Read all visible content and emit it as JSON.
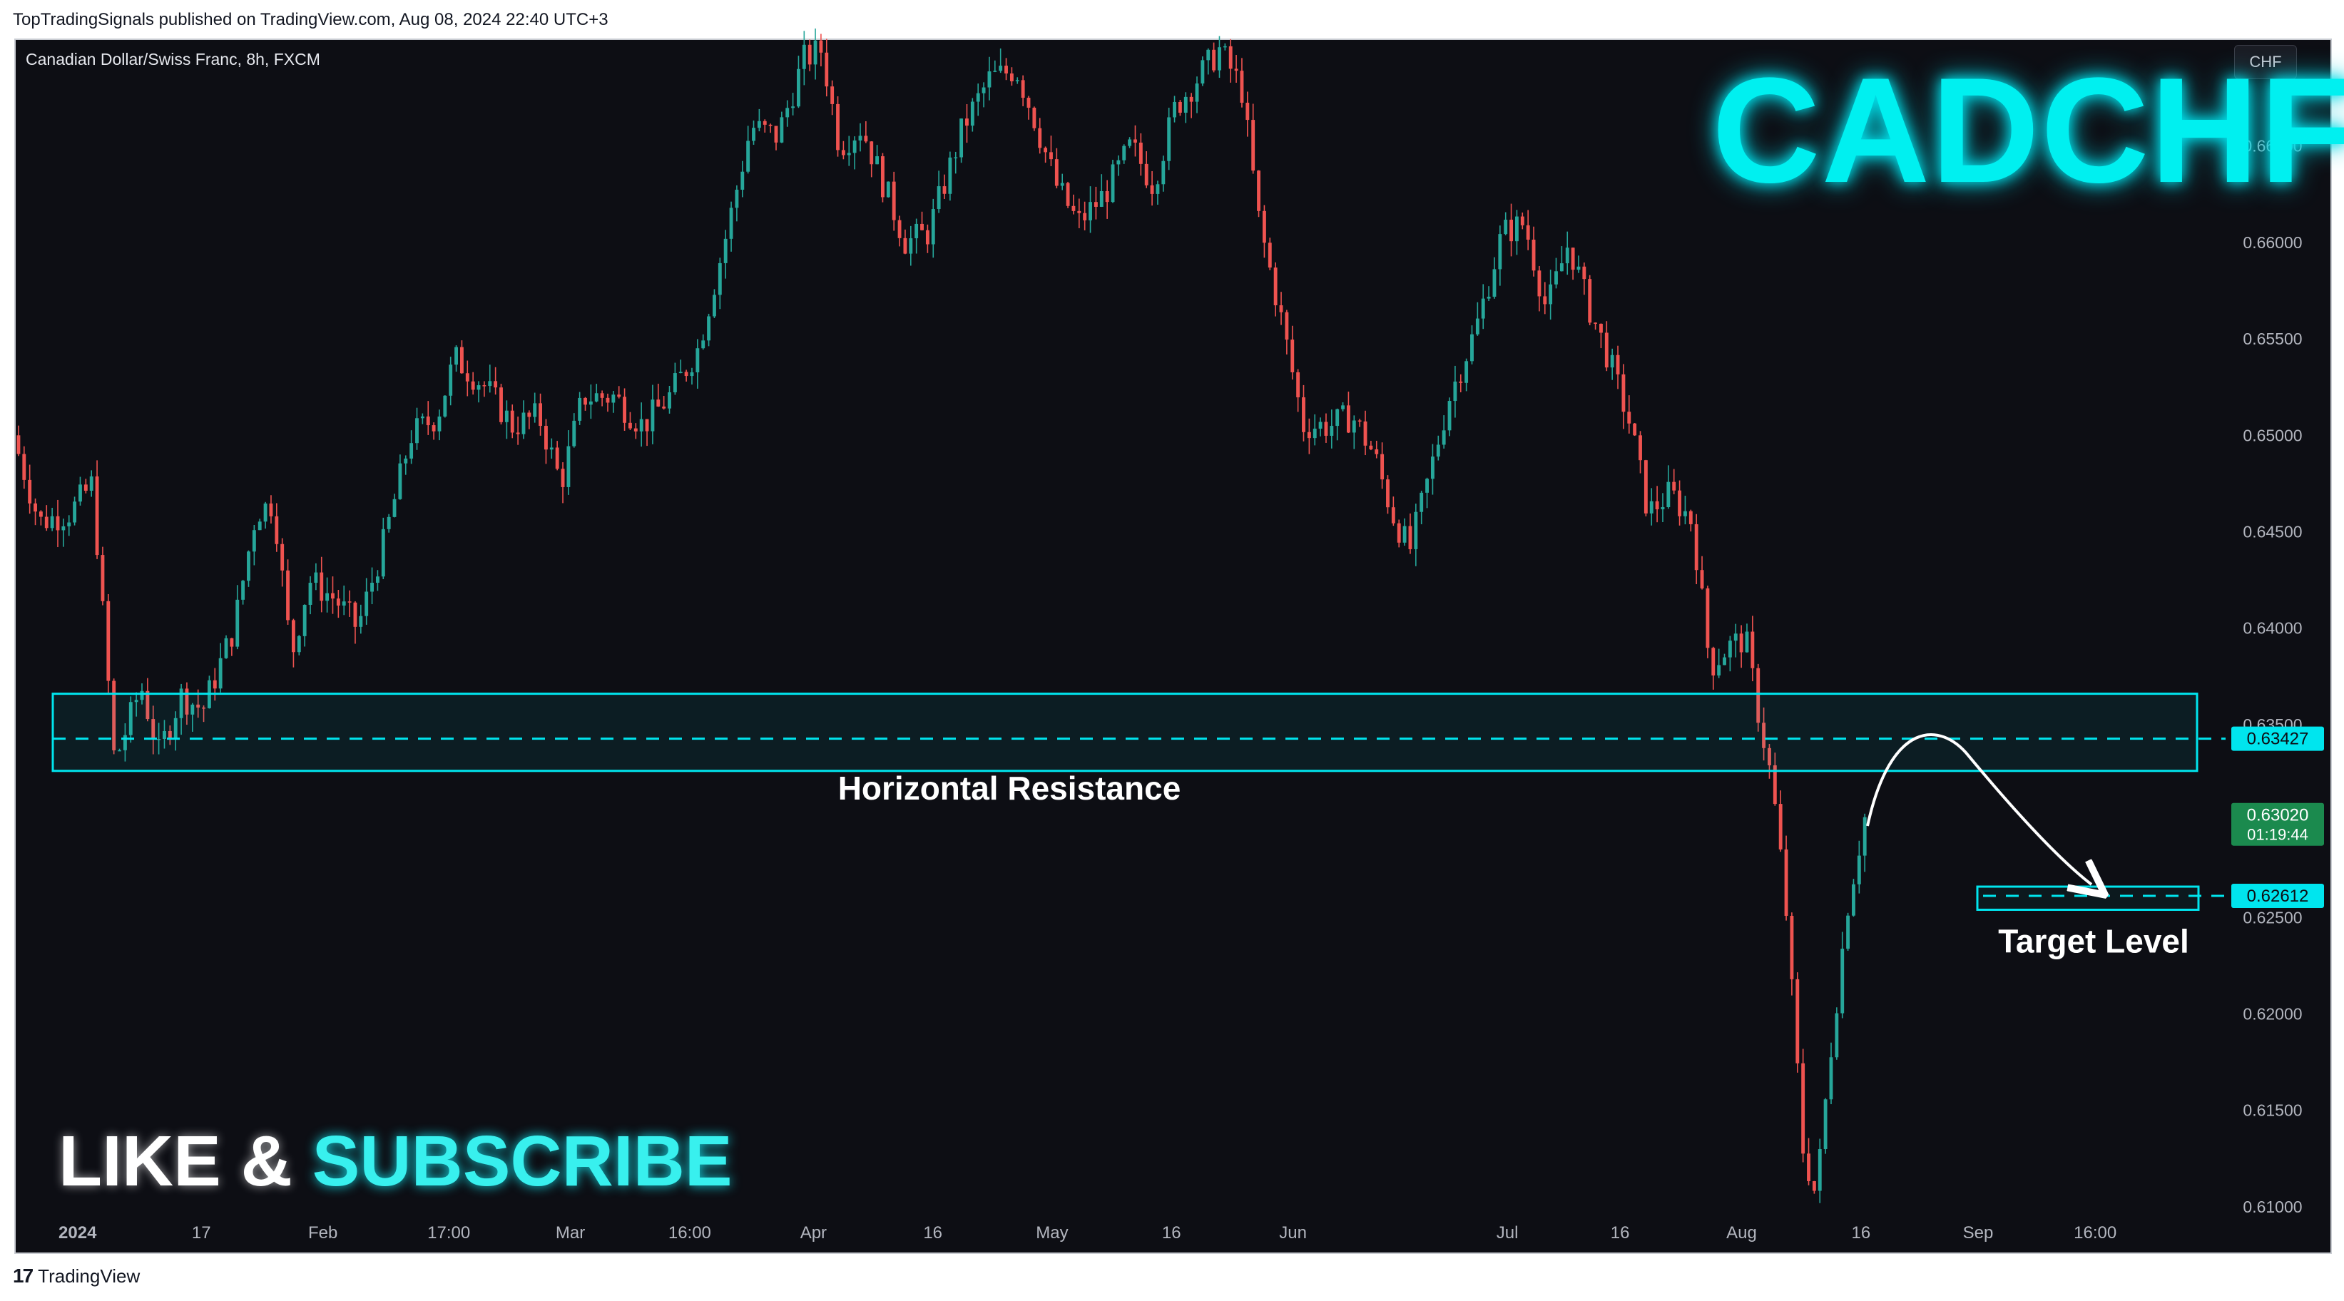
{
  "header": {
    "published_line": "TopTradingSignals published on TradingView.com, Aug 08, 2024 22:40 UTC+3",
    "symbol_title": "Canadian Dollar/Swiss Franc, 8h, FXCM",
    "currency_badge": "CHF",
    "big_ticker": "CADCHF"
  },
  "footer": {
    "like_text": "LIKE &",
    "subscribe_text": "SUBSCRIBE",
    "tv_logo_text": "TradingView"
  },
  "colors": {
    "background": "#0d0e14",
    "up_candle": "#26a69a",
    "down_candle": "#ef5350",
    "accent_cyan": "#00e5ee",
    "price_badge_green": "#1b8a4e"
  },
  "chart_data": {
    "type": "candlestick",
    "symbol": "CADCHF",
    "timeframe": "8h",
    "y_ticks": [
      "0.66500",
      "0.66000",
      "0.65500",
      "0.65000",
      "0.64500",
      "0.64000",
      "0.63500",
      "0.63000",
      "0.62500",
      "0.62000",
      "0.61500",
      "0.61000"
    ],
    "y_tick_values": [
      0.665,
      0.66,
      0.655,
      0.65,
      0.645,
      0.64,
      0.635,
      0.63,
      0.625,
      0.62,
      0.615,
      0.61
    ],
    "ylim": [
      0.6097,
      0.6705
    ],
    "x_ticks": [
      "2024",
      "17",
      "Feb",
      "17:00",
      "Mar",
      "16:00",
      "Apr",
      "16",
      "May",
      "16",
      "Jun",
      "Jul",
      "16",
      "Aug",
      "16",
      "Sep",
      "16:00"
    ],
    "x_tick_positions": [
      0.028,
      0.084,
      0.139,
      0.196,
      0.251,
      0.305,
      0.361,
      0.415,
      0.469,
      0.523,
      0.578,
      0.675,
      0.726,
      0.781,
      0.835,
      0.888,
      0.941
    ],
    "price_path": [
      [
        0.0,
        0.65
      ],
      [
        0.012,
        0.6455
      ],
      [
        0.026,
        0.646
      ],
      [
        0.036,
        0.6475
      ],
      [
        0.046,
        0.633
      ],
      [
        0.058,
        0.637
      ],
      [
        0.066,
        0.6335
      ],
      [
        0.076,
        0.6365
      ],
      [
        0.086,
        0.6358
      ],
      [
        0.1,
        0.64
      ],
      [
        0.11,
        0.646
      ],
      [
        0.118,
        0.6465
      ],
      [
        0.126,
        0.6385
      ],
      [
        0.134,
        0.6425
      ],
      [
        0.146,
        0.6415
      ],
      [
        0.156,
        0.64
      ],
      [
        0.168,
        0.6445
      ],
      [
        0.18,
        0.65
      ],
      [
        0.192,
        0.651
      ],
      [
        0.2,
        0.654
      ],
      [
        0.214,
        0.6525
      ],
      [
        0.226,
        0.6505
      ],
      [
        0.238,
        0.651
      ],
      [
        0.248,
        0.6475
      ],
      [
        0.258,
        0.652
      ],
      [
        0.272,
        0.652
      ],
      [
        0.285,
        0.6505
      ],
      [
        0.297,
        0.652
      ],
      [
        0.31,
        0.6545
      ],
      [
        0.322,
        0.66
      ],
      [
        0.334,
        0.666
      ],
      [
        0.346,
        0.6655
      ],
      [
        0.358,
        0.6695
      ],
      [
        0.366,
        0.67
      ],
      [
        0.374,
        0.665
      ],
      [
        0.384,
        0.666
      ],
      [
        0.394,
        0.663
      ],
      [
        0.404,
        0.66
      ],
      [
        0.414,
        0.6605
      ],
      [
        0.42,
        0.6625
      ],
      [
        0.43,
        0.666
      ],
      [
        0.442,
        0.6685
      ],
      [
        0.454,
        0.669
      ],
      [
        0.462,
        0.6665
      ],
      [
        0.472,
        0.663
      ],
      [
        0.482,
        0.661
      ],
      [
        0.494,
        0.6625
      ],
      [
        0.506,
        0.665
      ],
      [
        0.516,
        0.663
      ],
      [
        0.526,
        0.667
      ],
      [
        0.536,
        0.6685
      ],
      [
        0.546,
        0.67
      ],
      [
        0.556,
        0.668
      ],
      [
        0.564,
        0.661
      ],
      [
        0.574,
        0.656
      ],
      [
        0.584,
        0.6505
      ],
      [
        0.596,
        0.6505
      ],
      [
        0.606,
        0.651
      ],
      [
        0.616,
        0.649
      ],
      [
        0.624,
        0.646
      ],
      [
        0.632,
        0.644
      ],
      [
        0.64,
        0.6475
      ],
      [
        0.65,
        0.652
      ],
      [
        0.662,
        0.6555
      ],
      [
        0.674,
        0.6605
      ],
      [
        0.684,
        0.661
      ],
      [
        0.694,
        0.6565
      ],
      [
        0.704,
        0.66
      ],
      [
        0.712,
        0.657
      ],
      [
        0.722,
        0.654
      ],
      [
        0.732,
        0.6505
      ],
      [
        0.74,
        0.646
      ],
      [
        0.75,
        0.647
      ],
      [
        0.76,
        0.6455
      ],
      [
        0.768,
        0.638
      ],
      [
        0.776,
        0.639
      ],
      [
        0.784,
        0.6395
      ],
      [
        0.79,
        0.6355
      ],
      [
        0.796,
        0.632
      ],
      [
        0.802,
        0.626
      ],
      [
        0.81,
        0.613
      ],
      [
        0.816,
        0.6105
      ],
      [
        0.822,
        0.6175
      ],
      [
        0.83,
        0.6255
      ],
      [
        0.838,
        0.6302
      ]
    ],
    "candle_count": 330,
    "annotations": {
      "resistance_label": "Horizontal Resistance",
      "resistance_level": 0.63427,
      "resistance_zone": [
        0.6326,
        0.6366
      ],
      "resistance_badge": "0.63427",
      "target_label": "Target Level",
      "target_level": 0.62612,
      "target_zone": [
        0.6254,
        0.6266
      ],
      "target_badge": "0.62612",
      "current_price": "0.63020",
      "countdown": "01:19:44"
    },
    "grid": false
  }
}
